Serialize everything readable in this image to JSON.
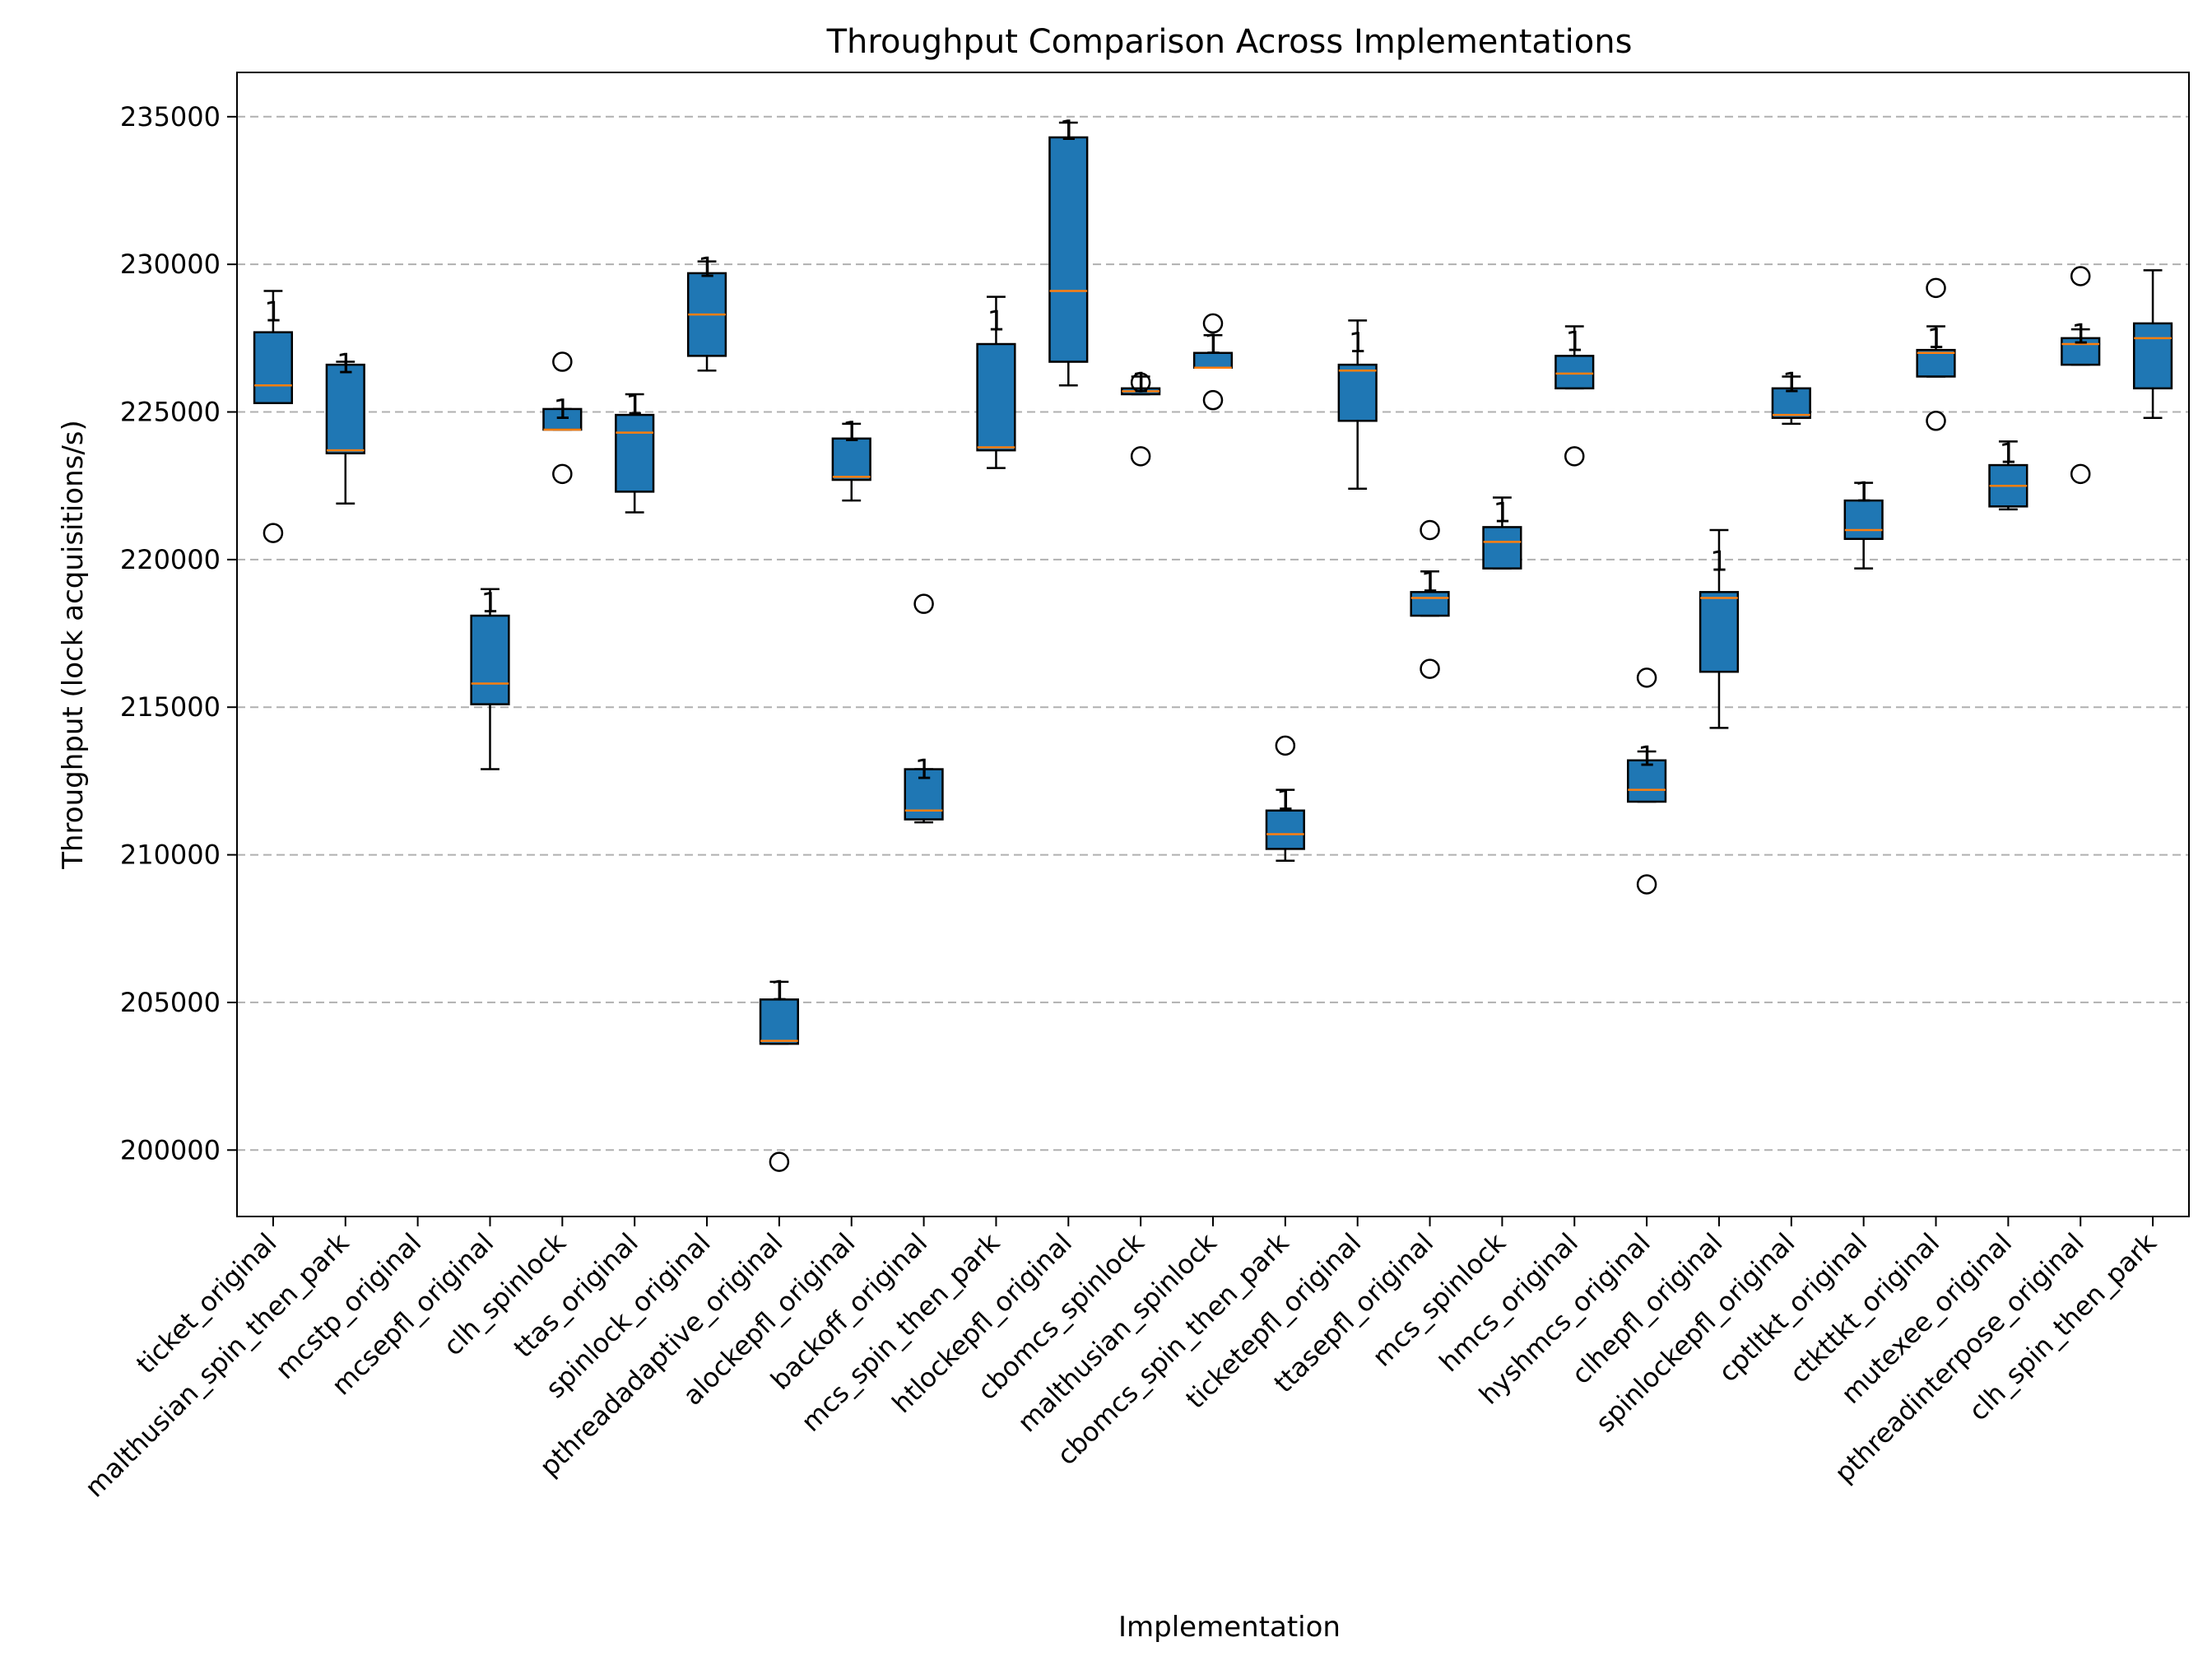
{
  "chart_data": {
    "type": "box",
    "title": "Throughput Comparison Across Implementations",
    "xlabel": "Implementation",
    "ylabel": "Throughput (lock acquisitions/s)",
    "ylim": [
      197750,
      236500
    ],
    "yticks": [
      200000,
      205000,
      210000,
      215000,
      220000,
      225000,
      230000,
      235000
    ],
    "grid": "y-dashed",
    "box_color": "#1f77b4",
    "median_color": "#ff7f0e",
    "categories": [
      "ticket_original",
      "malthusian_spin_then_park",
      "mcstp_original",
      "mcsepfl_original",
      "clh_spinlock",
      "ttas_original",
      "spinlock_original",
      "pthreadadaptive_original",
      "alockepfl_original",
      "backoff_original",
      "mcs_spin_then_park",
      "htlockepfl_original",
      "cbomcs_spinlock",
      "malthusian_spinlock",
      "cbomcs_spin_then_park",
      "ticketepfl_original",
      "ttasepfl_original",
      "mcs_spinlock",
      "hmcs_original",
      "hyshmcs_original",
      "clhepfl_original",
      "spinlockepfl_original",
      "cptltkt_original",
      "ctkttkt_original",
      "mutexee_original",
      "pthreadinterpose_original",
      "clh_spin_then_park"
    ],
    "boxes": [
      {
        "q1": 225300,
        "median": 225900,
        "q3": 227700,
        "whislo": 225300,
        "whishi": 229100,
        "fliers": [
          220900
        ],
        "annotation": "1"
      },
      {
        "q1": 223600,
        "median": 223700,
        "q3": 226600,
        "whislo": 221900,
        "whishi": 226700,
        "fliers": [],
        "annotation": "1"
      },
      null,
      {
        "q1": 215100,
        "median": 215800,
        "q3": 218100,
        "whislo": 212900,
        "whishi": 219000,
        "fliers": [],
        "annotation": "1"
      },
      {
        "q1": 224400,
        "median": 224400,
        "q3": 225100,
        "whislo": 224400,
        "whishi": 225100,
        "fliers": [
          226700,
          222900
        ],
        "annotation": "1"
      },
      {
        "q1": 222300,
        "median": 224300,
        "q3": 224900,
        "whislo": 221600,
        "whishi": 225600,
        "fliers": [],
        "annotation": "1"
      },
      {
        "q1": 226900,
        "median": 228300,
        "q3": 229700,
        "whislo": 226400,
        "whishi": 230100,
        "fliers": [],
        "annotation": "1"
      },
      {
        "q1": 203600,
        "median": 203700,
        "q3": 205100,
        "whislo": 203600,
        "whishi": 205700,
        "fliers": [
          199600
        ],
        "annotation": "1"
      },
      {
        "q1": 222700,
        "median": 222800,
        "q3": 224100,
        "whislo": 222000,
        "whishi": 224600,
        "fliers": [],
        "annotation": "1"
      },
      {
        "q1": 211200,
        "median": 211500,
        "q3": 212900,
        "whislo": 211100,
        "whishi": 212900,
        "fliers": [
          218500
        ],
        "annotation": "1"
      },
      {
        "q1": 223700,
        "median": 223800,
        "q3": 227300,
        "whislo": 223100,
        "whishi": 228900,
        "fliers": [],
        "annotation": "1"
      },
      {
        "q1": 226700,
        "median": 229100,
        "q3": 234300,
        "whislo": 225900,
        "whishi": 234800,
        "fliers": [],
        "annotation": "1"
      },
      {
        "q1": 225600,
        "median": 225700,
        "q3": 225800,
        "whislo": 225600,
        "whishi": 226200,
        "fliers": [
          226000,
          223500
        ],
        "annotation": "1"
      },
      {
        "q1": 226500,
        "median": 226500,
        "q3": 227000,
        "whislo": 226500,
        "whishi": 227600,
        "fliers": [
          228000,
          225400
        ],
        "annotation": "1"
      },
      {
        "q1": 210200,
        "median": 210700,
        "q3": 211500,
        "whislo": 209800,
        "whishi": 212200,
        "fliers": [
          213700
        ],
        "annotation": "1"
      },
      {
        "q1": 224700,
        "median": 226400,
        "q3": 226600,
        "whislo": 222400,
        "whishi": 228100,
        "fliers": [],
        "annotation": "1"
      },
      {
        "q1": 218100,
        "median": 218700,
        "q3": 218900,
        "whislo": 218100,
        "whishi": 219600,
        "fliers": [
          221000,
          216300
        ],
        "annotation": "1"
      },
      {
        "q1": 219700,
        "median": 220600,
        "q3": 221100,
        "whislo": 219700,
        "whishi": 222100,
        "fliers": [],
        "annotation": "1"
      },
      {
        "q1": 225800,
        "median": 226300,
        "q3": 226900,
        "whislo": 225800,
        "whishi": 227900,
        "fliers": [
          223500
        ],
        "annotation": "1"
      },
      {
        "q1": 211800,
        "median": 212200,
        "q3": 213200,
        "whislo": 211800,
        "whishi": 213500,
        "fliers": [
          216000,
          209000
        ],
        "annotation": "1"
      },
      {
        "q1": 216200,
        "median": 218700,
        "q3": 218900,
        "whislo": 214300,
        "whishi": 221000,
        "fliers": [],
        "annotation": "1"
      },
      {
        "q1": 224800,
        "median": 224900,
        "q3": 225800,
        "whislo": 224600,
        "whishi": 226200,
        "fliers": [],
        "annotation": "1"
      },
      {
        "q1": 220700,
        "median": 221000,
        "q3": 222000,
        "whislo": 219700,
        "whishi": 222600,
        "fliers": [],
        "annotation": "1"
      },
      {
        "q1": 226200,
        "median": 227000,
        "q3": 227100,
        "whislo": 226200,
        "whishi": 227900,
        "fliers": [
          229200,
          224700
        ],
        "annotation": "1"
      },
      {
        "q1": 221800,
        "median": 222500,
        "q3": 223200,
        "whislo": 221700,
        "whishi": 224000,
        "fliers": [],
        "annotation": "1"
      },
      {
        "q1": 226600,
        "median": 227300,
        "q3": 227500,
        "whislo": 226600,
        "whishi": 227800,
        "fliers": [
          229600,
          222900
        ],
        "annotation": "1"
      },
      {
        "q1": 225800,
        "median": 227500,
        "q3": 228000,
        "whislo": 224800,
        "whishi": 229800,
        "fliers": [],
        "annotation": ""
      }
    ]
  }
}
